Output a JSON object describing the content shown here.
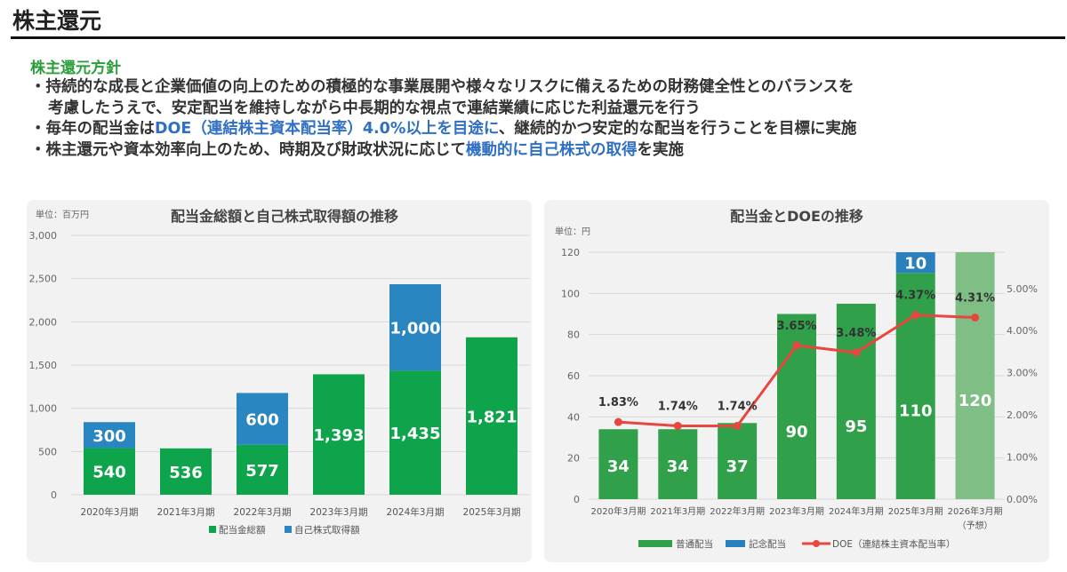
{
  "page_title": "株主還元",
  "policy": {
    "heading": "株主還元方針",
    "bullet1a": "・持続的な成長と企業価値の向上のための積極的な事業展開や様々なリスクに備えるための財務健全性とのバランスを",
    "bullet1b": "考慮したうえで、安定配当を維持しながら中長期的な視点で連結業績に応じた利益還元を行う",
    "bullet2_pre": "・毎年の配当金は",
    "bullet2_hl": "DOE（連結株主資本配当率）4.0%以上を目途に",
    "bullet2_post": "、継続的かつ安定的な配当を行うことを目標に実施",
    "bullet3_pre": "・株主還元や資本効率向上のため、時期及び財政状況に応じて",
    "bullet3_hl": "機動的に自己株式の取得",
    "bullet3_post": "を実施"
  },
  "chart_data": [
    {
      "type": "bar",
      "stacked": true,
      "title": "配当金総額と自己株式取得額の推移",
      "unit": "単位：百万円",
      "categories": [
        "2020年3月期",
        "2021年3月期",
        "2022年3月期",
        "2023年3月期",
        "2024年3月期",
        "2025年3月期"
      ],
      "series": [
        {
          "name": "配当金総額",
          "color": "#0ea44c",
          "values": [
            540,
            536,
            577,
            1393,
            1435,
            1821
          ],
          "labels": [
            "540",
            "536",
            "577",
            "1,393",
            "1,435",
            "1,821"
          ]
        },
        {
          "name": "自己株式取得額",
          "color": "#2a86c0",
          "values": [
            300,
            0,
            600,
            0,
            1000,
            0
          ],
          "labels": [
            "300",
            "",
            "600",
            "",
            "1,000",
            ""
          ]
        }
      ],
      "ylim": [
        0,
        3000
      ],
      "yticks": [
        "0",
        "500",
        "1,000",
        "1,500",
        "2,000",
        "2,500",
        "3,000"
      ],
      "legend": "bottom"
    },
    {
      "type": "bar+line",
      "title": "配当金とDOEの推移",
      "unit": "単位：円",
      "categories": [
        "2020年3月期",
        "2021年3月期",
        "2022年3月期",
        "2023年3月期",
        "2024年3月期",
        "2025年3月期",
        "2026年3月期"
      ],
      "forecast_note": "（予想）",
      "series": [
        {
          "name": "普通配当",
          "color": "#31a04a",
          "forecast_color": "#7fbf86",
          "values": [
            34,
            34,
            37,
            90,
            95,
            110,
            120
          ]
        },
        {
          "name": "記念配当",
          "color": "#2a80bd",
          "values": [
            0,
            0,
            0,
            0,
            0,
            10,
            0
          ]
        },
        {
          "name": "DOE（連結株主資本配当率）",
          "color": "#e8463e",
          "axis": "right",
          "values": [
            1.83,
            1.74,
            1.74,
            3.65,
            3.48,
            4.37,
            4.31
          ],
          "labels": [
            "1.83%",
            "1.74%",
            "1.74%",
            "3.65%",
            "3.48%",
            "4.37%",
            "4.31%"
          ]
        }
      ],
      "ylim": [
        0,
        120
      ],
      "yticks": [
        "0",
        "20",
        "40",
        "60",
        "80",
        "100",
        "120"
      ],
      "y2ticks": [
        "0.00%",
        "1.00%",
        "2.00%",
        "3.00%",
        "4.00%",
        "5.00%"
      ],
      "legend": "bottom"
    }
  ]
}
